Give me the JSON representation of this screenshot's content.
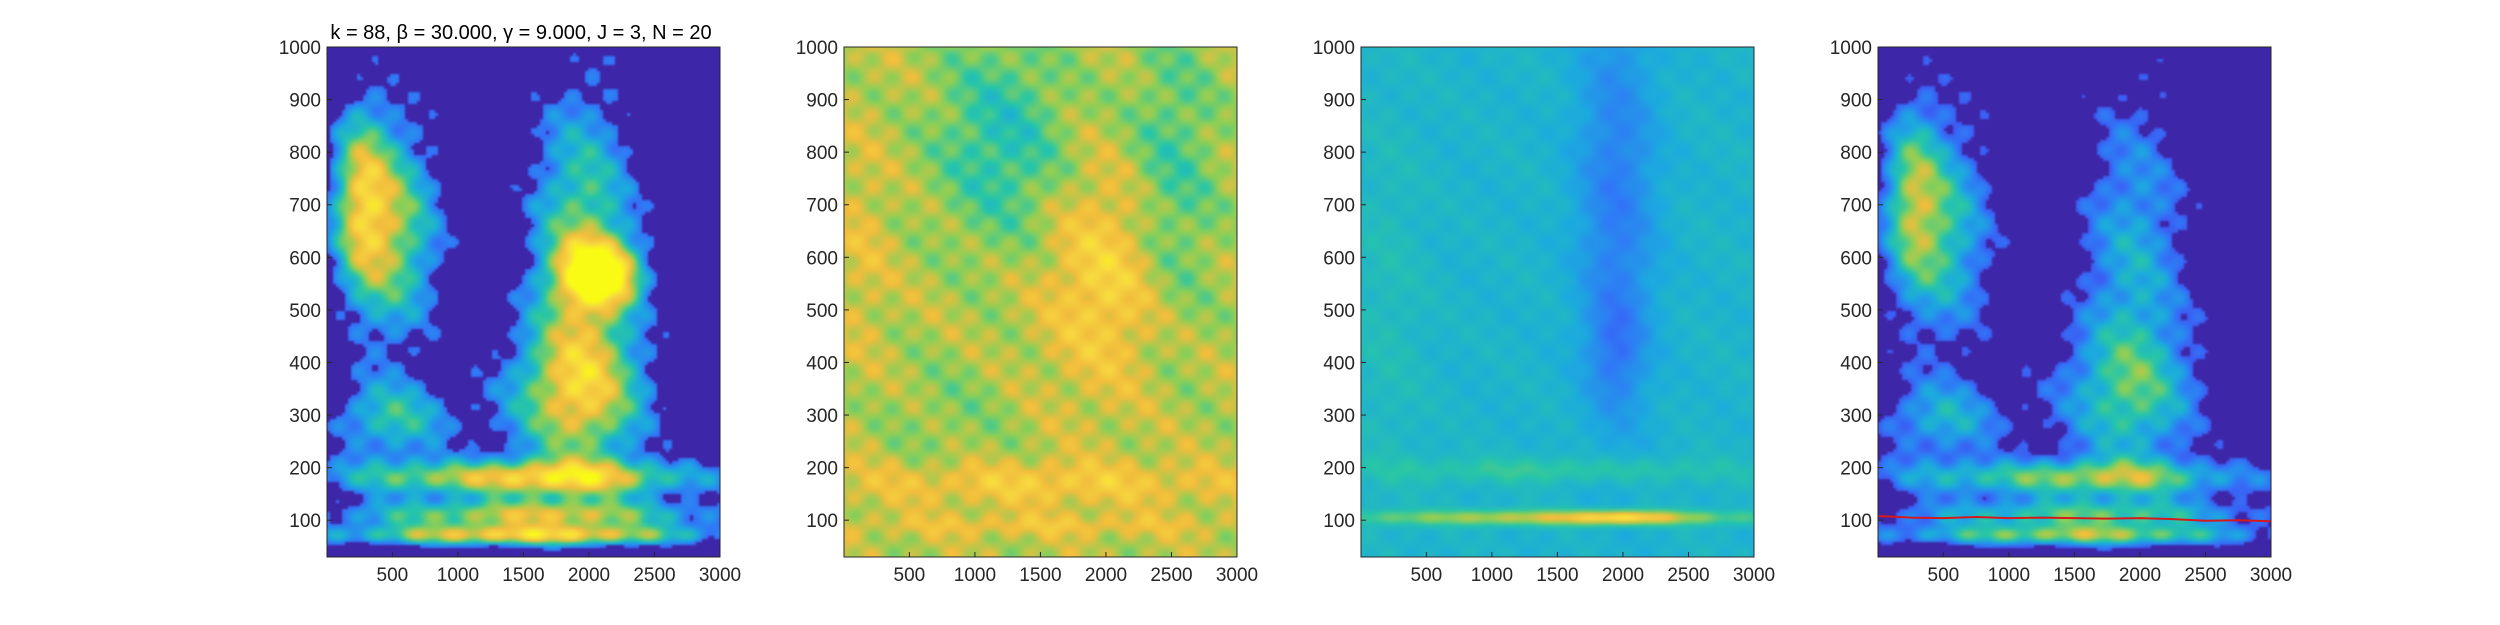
{
  "figure": {
    "title": "k = 88, β = 30.000, γ = 9.000, J = 3, N = 20"
  },
  "colors": {
    "background": "#ffffff",
    "colormap": [
      "#3e26a8",
      "#4743f1",
      "#2f7bf6",
      "#1caadf",
      "#27c6a8",
      "#8ccf57",
      "#f1bd3c",
      "#f8d940",
      "#f9fb15"
    ],
    "ridge_line": "#d7191c"
  },
  "chart_data": [
    {
      "type": "heatmap",
      "name": "panel-1",
      "title": "k = 88, β = 30.000, γ = 9.000, J = 3, N = 20",
      "xlim": [
        1,
        3000
      ],
      "ylim": [
        30,
        1000
      ],
      "x_ticks": [
        500,
        1000,
        1500,
        2000,
        2500,
        3000
      ],
      "y_ticks": [
        100,
        200,
        300,
        400,
        500,
        600,
        700,
        800,
        900,
        1000
      ],
      "x_tick_labels": [
        "500",
        "1000",
        "1500",
        "2000",
        "2500",
        "3000"
      ],
      "y_tick_labels": [
        "100",
        "200",
        "300",
        "400",
        "500",
        "600",
        "700",
        "800",
        "900",
        "1000"
      ],
      "background_level": 0.0,
      "blobs": [
        {
          "x": 500,
          "y": 650,
          "sx": 380,
          "sy": 220,
          "v": 0.62
        },
        {
          "x": 250,
          "y": 720,
          "sx": 220,
          "sy": 180,
          "v": 0.5
        },
        {
          "x": 1950,
          "y": 600,
          "sx": 420,
          "sy": 330,
          "v": 0.62
        },
        {
          "x": 2100,
          "y": 570,
          "sx": 300,
          "sy": 60,
          "v": 0.78
        },
        {
          "x": 1900,
          "y": 330,
          "sx": 600,
          "sy": 140,
          "v": 0.55
        },
        {
          "x": 500,
          "y": 290,
          "sx": 500,
          "sy": 80,
          "v": 0.45
        },
        {
          "x": 1500,
          "y": 180,
          "sx": 1500,
          "sy": 35,
          "v": 0.72
        },
        {
          "x": 1500,
          "y": 110,
          "sx": 1500,
          "sy": 30,
          "v": 0.66
        },
        {
          "x": 1500,
          "y": 70,
          "sx": 1500,
          "sy": 20,
          "v": 0.72
        }
      ],
      "threshold": 0.22,
      "texture": 0.22
    },
    {
      "type": "heatmap",
      "name": "panel-2",
      "xlim": [
        1,
        3000
      ],
      "ylim": [
        30,
        1000
      ],
      "x_ticks": [
        500,
        1000,
        1500,
        2000,
        2500,
        3000
      ],
      "y_ticks": [
        100,
        200,
        300,
        400,
        500,
        600,
        700,
        800,
        900,
        1000
      ],
      "x_tick_labels": [
        "500",
        "1000",
        "1500",
        "2000",
        "2500",
        "3000"
      ],
      "y_tick_labels": [
        "100",
        "200",
        "300",
        "400",
        "500",
        "600",
        "700",
        "800",
        "900",
        "1000"
      ],
      "background_level": 0.68,
      "blobs": [
        {
          "x": 2000,
          "y": 560,
          "sx": 450,
          "sy": 200,
          "v": 0.18
        },
        {
          "x": 150,
          "y": 620,
          "sx": 200,
          "sy": 200,
          "v": 0.06
        },
        {
          "x": 1500,
          "y": 170,
          "sx": 1500,
          "sy": 40,
          "v": 0.14
        },
        {
          "x": 1500,
          "y": 90,
          "sx": 1500,
          "sy": 20,
          "v": 0.1
        },
        {
          "x": 1200,
          "y": 820,
          "sx": 500,
          "sy": 200,
          "v": -0.2
        },
        {
          "x": 2500,
          "y": 750,
          "sx": 350,
          "sy": 300,
          "v": -0.15
        },
        {
          "x": 800,
          "y": 300,
          "sx": 500,
          "sy": 120,
          "v": -0.06
        }
      ],
      "threshold": -10,
      "texture": 0.18
    },
    {
      "type": "heatmap",
      "name": "panel-3",
      "xlim": [
        1,
        3000
      ],
      "ylim": [
        30,
        1000
      ],
      "x_ticks": [
        500,
        1000,
        1500,
        2000,
        2500,
        3000
      ],
      "y_ticks": [
        100,
        200,
        300,
        400,
        500,
        600,
        700,
        800,
        900,
        1000
      ],
      "x_tick_labels": [
        "500",
        "1000",
        "1500",
        "2000",
        "2500",
        "3000"
      ],
      "y_tick_labels": [
        "100",
        "200",
        "300",
        "400",
        "500",
        "600",
        "700",
        "800",
        "900",
        "1000"
      ],
      "background_level": 0.42,
      "blobs": [
        {
          "x": 1950,
          "y": 700,
          "sx": 300,
          "sy": 400,
          "v": -0.16
        },
        {
          "x": 1950,
          "y": 420,
          "sx": 200,
          "sy": 100,
          "v": -0.1
        },
        {
          "x": 200,
          "y": 500,
          "sx": 300,
          "sy": 400,
          "v": 0.04
        },
        {
          "x": 1500,
          "y": 195,
          "sx": 1500,
          "sy": 25,
          "v": 0.1
        },
        {
          "x": 1500,
          "y": 105,
          "sx": 1500,
          "sy": 14,
          "v": 0.28
        },
        {
          "x": 2000,
          "y": 105,
          "sx": 400,
          "sy": 12,
          "v": 0.25
        }
      ],
      "threshold": -10,
      "texture": 0.06
    },
    {
      "type": "heatmap",
      "name": "panel-4",
      "xlim": [
        1,
        3000
      ],
      "ylim": [
        30,
        1000
      ],
      "x_ticks": [
        500,
        1000,
        1500,
        2000,
        2500,
        3000
      ],
      "y_ticks": [
        100,
        200,
        300,
        400,
        500,
        600,
        700,
        800,
        900,
        1000
      ],
      "x_tick_labels": [
        "500",
        "1000",
        "1500",
        "2000",
        "2500",
        "3000"
      ],
      "y_tick_labels": [
        "100",
        "200",
        "300",
        "400",
        "500",
        "600",
        "700",
        "800",
        "900",
        "1000"
      ],
      "background_level": 0.0,
      "blobs": [
        {
          "x": 500,
          "y": 650,
          "sx": 380,
          "sy": 220,
          "v": 0.48
        },
        {
          "x": 250,
          "y": 720,
          "sx": 220,
          "sy": 180,
          "v": 0.42
        },
        {
          "x": 1950,
          "y": 600,
          "sx": 420,
          "sy": 330,
          "v": 0.38
        },
        {
          "x": 1900,
          "y": 330,
          "sx": 600,
          "sy": 140,
          "v": 0.38
        },
        {
          "x": 500,
          "y": 290,
          "sx": 500,
          "sy": 80,
          "v": 0.38
        },
        {
          "x": 1500,
          "y": 180,
          "sx": 1500,
          "sy": 35,
          "v": 0.55
        },
        {
          "x": 1500,
          "y": 110,
          "sx": 1500,
          "sy": 30,
          "v": 0.5
        },
        {
          "x": 1500,
          "y": 70,
          "sx": 1500,
          "sy": 20,
          "v": 0.55
        }
      ],
      "threshold": 0.18,
      "texture": 0.2,
      "ridge": {
        "x": [
          1,
          250,
          500,
          750,
          1000,
          1250,
          1500,
          1750,
          2000,
          2250,
          2500,
          2750,
          3000
        ],
        "y": [
          108,
          105,
          104,
          106,
          104,
          105,
          104,
          103,
          104,
          102,
          99,
          100,
          98
        ]
      }
    }
  ]
}
